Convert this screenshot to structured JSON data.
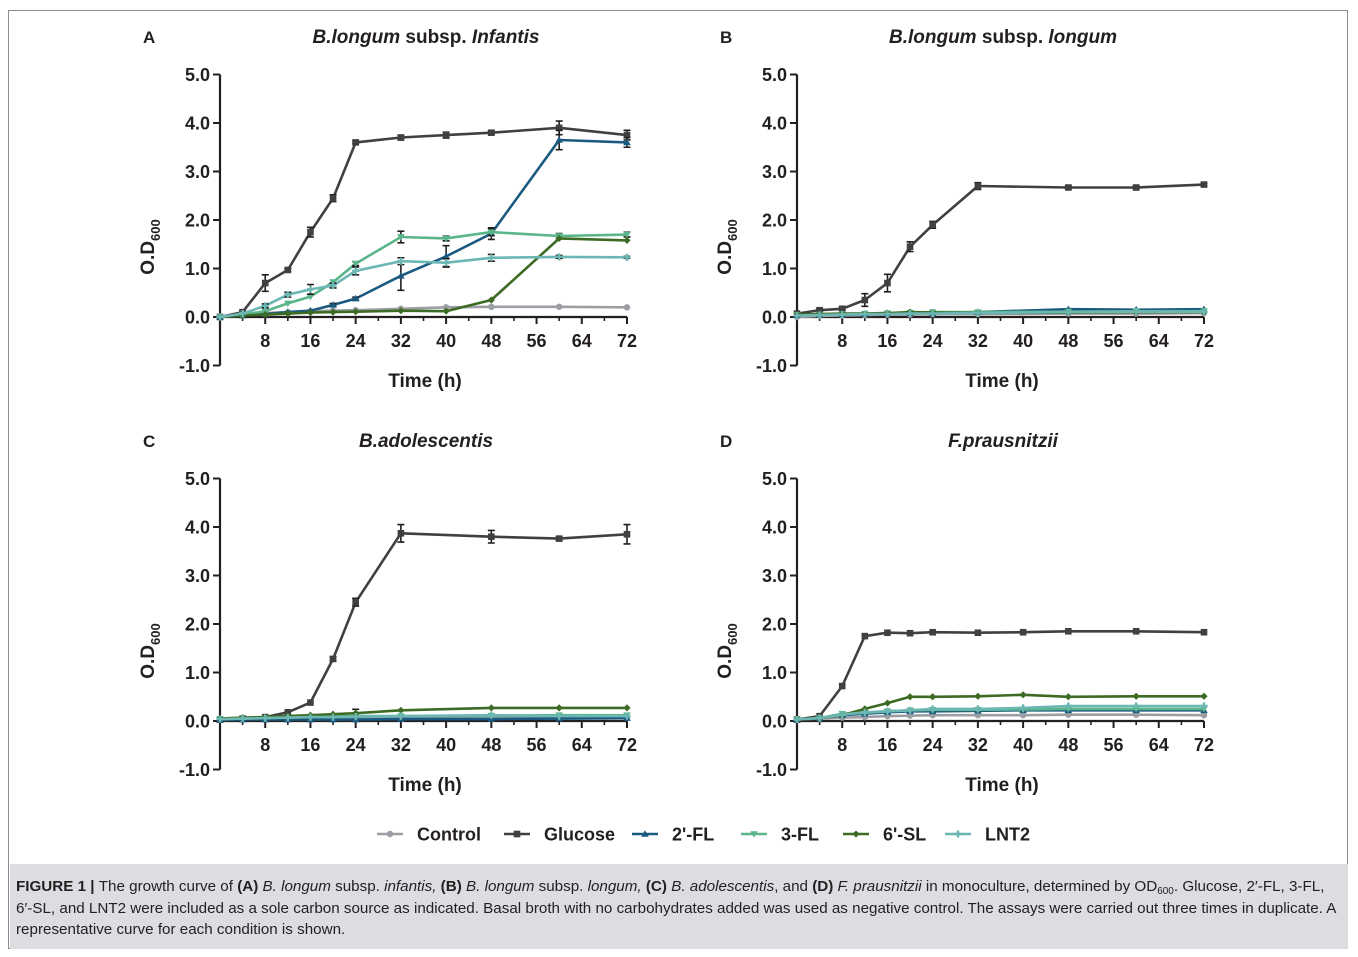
{
  "figure": {
    "colors": {
      "Control": "#9b9ea3",
      "Glucose": "#404040",
      "2'-FL": "#1a5a80",
      "3-FL": "#5bb58a",
      "6'-SL": "#3d6b24",
      "LNT2": "#6cb7b3"
    },
    "legend": [
      "Control",
      "Glucose",
      "2'-FL",
      "3-FL",
      "6'-SL",
      "LNT2"
    ]
  },
  "chart_data": [
    {
      "type": "line",
      "panel_letter": "A",
      "title_parts": [
        {
          "text": "B.longum",
          "italic": true
        },
        {
          "text": " subsp. ",
          "italic": false
        },
        {
          "text": "Infantis",
          "italic": true
        }
      ],
      "xlabel": "Time (h)",
      "ylabel": "O.D",
      "ylabel_sub": "600",
      "xlim": [
        0,
        72
      ],
      "ylim": [
        -1.0,
        5.0
      ],
      "xticks": [
        "8",
        "16",
        "24",
        "32",
        "40",
        "48",
        "56",
        "64",
        "72"
      ],
      "yticks": [
        "5.0",
        "4.0",
        "3.0",
        "2.0",
        "1.0",
        "0.0",
        "-1.0"
      ],
      "series": [
        {
          "name": "Control",
          "x": [
            0,
            4,
            8,
            12,
            16,
            20,
            24,
            32,
            40,
            48,
            60,
            72
          ],
          "y": [
            0,
            0.03,
            0.08,
            0.1,
            0.12,
            0.13,
            0.14,
            0.17,
            0.2,
            0.21,
            0.21,
            0.2
          ]
        },
        {
          "name": "Glucose",
          "x": [
            0,
            4,
            8,
            12,
            16,
            20,
            24,
            32,
            40,
            48,
            60,
            72
          ],
          "y": [
            0,
            0.1,
            0.7,
            0.97,
            1.75,
            2.45,
            3.6,
            3.7,
            3.75,
            3.8,
            3.9,
            3.75
          ],
          "err": [
            0,
            0.03,
            0.17,
            0.03,
            0.1,
            0.07,
            0.03,
            0.05,
            0.06,
            0.04,
            0.14,
            0.1
          ]
        },
        {
          "name": "2'-FL",
          "x": [
            0,
            4,
            8,
            12,
            16,
            20,
            24,
            32,
            40,
            48,
            60,
            72
          ],
          "y": [
            0,
            0.03,
            0.06,
            0.1,
            0.13,
            0.25,
            0.38,
            0.85,
            1.25,
            1.72,
            3.65,
            3.6
          ],
          "err": [
            0,
            0,
            0,
            0,
            0,
            0.03,
            0.03,
            0.3,
            0.22,
            0.12,
            0.2,
            0.1
          ]
        },
        {
          "name": "3-FL",
          "x": [
            0,
            4,
            8,
            12,
            16,
            20,
            24,
            32,
            40,
            48,
            60,
            72
          ],
          "y": [
            0,
            0.05,
            0.12,
            0.28,
            0.42,
            0.72,
            1.1,
            1.65,
            1.62,
            1.75,
            1.67,
            1.7
          ],
          "err": [
            0,
            0,
            0,
            0,
            0,
            0,
            0.04,
            0.12,
            0.05,
            0.07,
            0.05,
            0.05
          ]
        },
        {
          "name": "6'-SL",
          "x": [
            0,
            4,
            8,
            12,
            16,
            20,
            24,
            32,
            40,
            48,
            60,
            72
          ],
          "y": [
            0,
            0.03,
            0.05,
            0.07,
            0.09,
            0.1,
            0.11,
            0.13,
            0.12,
            0.35,
            1.62,
            1.58
          ]
        },
        {
          "name": "LNT2",
          "x": [
            0,
            4,
            8,
            12,
            16,
            20,
            24,
            32,
            40,
            48,
            60,
            72
          ],
          "y": [
            0,
            0.07,
            0.23,
            0.46,
            0.57,
            0.65,
            0.95,
            1.15,
            1.12,
            1.22,
            1.24,
            1.23
          ],
          "err": [
            0,
            0,
            0.04,
            0.05,
            0.1,
            0.05,
            0.08,
            0.07,
            0.08,
            0.07,
            0.03,
            0.02
          ]
        }
      ]
    },
    {
      "type": "line",
      "panel_letter": "B",
      "title_parts": [
        {
          "text": "B.longum",
          "italic": true
        },
        {
          "text": " subsp. ",
          "italic": false
        },
        {
          "text": "longum",
          "italic": true
        }
      ],
      "xlabel": "Time (h)",
      "ylabel": "O.D",
      "ylabel_sub": "600",
      "xlim": [
        0,
        72
      ],
      "ylim": [
        -1.0,
        5.0
      ],
      "xticks": [
        "8",
        "16",
        "24",
        "32",
        "40",
        "48",
        "56",
        "64",
        "72"
      ],
      "yticks": [
        "5.0",
        "4.0",
        "3.0",
        "2.0",
        "1.0",
        "0.0",
        "-1.0"
      ],
      "series": [
        {
          "name": "Control",
          "x": [
            0,
            4,
            8,
            12,
            16,
            20,
            24,
            32,
            48,
            60,
            72
          ],
          "y": [
            0,
            0.02,
            0.03,
            0.04,
            0.05,
            0.05,
            0.06,
            0.06,
            0.07,
            0.07,
            0.08
          ]
        },
        {
          "name": "Glucose",
          "x": [
            0,
            4,
            8,
            12,
            16,
            20,
            24,
            32,
            48,
            60,
            72
          ],
          "y": [
            0.07,
            0.14,
            0.17,
            0.35,
            0.7,
            1.45,
            1.9,
            2.7,
            2.67,
            2.67,
            2.73
          ],
          "err": [
            0,
            0.03,
            0.03,
            0.13,
            0.18,
            0.1,
            0.07,
            0.07,
            0.03,
            0.03,
            0.03
          ]
        },
        {
          "name": "2'-FL",
          "x": [
            0,
            4,
            8,
            12,
            16,
            20,
            24,
            32,
            48,
            60,
            72
          ],
          "y": [
            0.04,
            0.05,
            0.05,
            0.06,
            0.07,
            0.08,
            0.08,
            0.1,
            0.16,
            0.15,
            0.16
          ]
        },
        {
          "name": "3-FL",
          "x": [
            0,
            4,
            8,
            12,
            16,
            20,
            24,
            32,
            48,
            60,
            72
          ],
          "y": [
            0.04,
            0.05,
            0.06,
            0.07,
            0.08,
            0.09,
            0.1,
            0.1,
            0.11,
            0.12,
            0.12
          ]
        },
        {
          "name": "6'-SL",
          "x": [
            0,
            4,
            8,
            12,
            16,
            20,
            24,
            32,
            48,
            60,
            72
          ],
          "y": [
            0.05,
            0.06,
            0.07,
            0.07,
            0.08,
            0.1,
            0.09,
            0.08,
            0.09,
            0.1,
            0.1
          ]
        },
        {
          "name": "LNT2",
          "x": [
            0,
            4,
            8,
            12,
            16,
            20,
            24,
            32,
            48,
            60,
            72
          ],
          "y": [
            0.03,
            0.04,
            0.05,
            0.06,
            0.06,
            0.07,
            0.07,
            0.08,
            0.1,
            0.11,
            0.11
          ]
        }
      ]
    },
    {
      "type": "line",
      "panel_letter": "C",
      "title_parts": [
        {
          "text": "B.adolescentis",
          "italic": true
        }
      ],
      "xlabel": "Time (h)",
      "ylabel": "O.D",
      "ylabel_sub": "600",
      "xlim": [
        0,
        72
      ],
      "ylim": [
        -1.0,
        5.0
      ],
      "xticks": [
        "8",
        "16",
        "24",
        "32",
        "40",
        "48",
        "56",
        "64",
        "72"
      ],
      "yticks": [
        "5.0",
        "4.0",
        "3.0",
        "2.0",
        "1.0",
        "0.0",
        "-1.0"
      ],
      "series": [
        {
          "name": "Control",
          "x": [
            0,
            4,
            8,
            12,
            16,
            20,
            24,
            32,
            48,
            60,
            72
          ],
          "y": [
            0.03,
            0.04,
            0.04,
            0.05,
            0.05,
            0.06,
            0.06,
            0.06,
            0.07,
            0.07,
            0.07
          ]
        },
        {
          "name": "Glucose",
          "x": [
            0,
            4,
            8,
            12,
            16,
            20,
            24,
            32,
            48,
            60,
            72
          ],
          "y": [
            0.03,
            0.05,
            0.08,
            0.18,
            0.38,
            1.28,
            2.45,
            3.87,
            3.8,
            3.76,
            3.85
          ],
          "err": [
            0,
            0,
            0,
            0,
            0,
            0.04,
            0.08,
            0.18,
            0.13,
            0.04,
            0.2
          ]
        },
        {
          "name": "2'-FL",
          "x": [
            0,
            4,
            8,
            12,
            16,
            20,
            24,
            32,
            48,
            60,
            72
          ],
          "y": [
            0.02,
            0.03,
            0.03,
            0.03,
            0.03,
            0.03,
            0.03,
            0.04,
            0.04,
            0.05,
            0.06
          ]
        },
        {
          "name": "3-FL",
          "x": [
            0,
            4,
            8,
            12,
            16,
            20,
            24,
            32,
            48,
            60,
            72
          ],
          "y": [
            0.04,
            0.05,
            0.06,
            0.07,
            0.08,
            0.09,
            0.1,
            0.1,
            0.11,
            0.12,
            0.12
          ]
        },
        {
          "name": "6'-SL",
          "x": [
            0,
            4,
            8,
            12,
            16,
            20,
            24,
            32,
            48,
            60,
            72
          ],
          "y": [
            0.05,
            0.07,
            0.08,
            0.1,
            0.12,
            0.14,
            0.16,
            0.22,
            0.27,
            0.27,
            0.27
          ],
          "err": [
            0,
            0,
            0,
            0,
            0,
            0,
            0.08,
            0,
            0,
            0,
            0
          ]
        },
        {
          "name": "LNT2",
          "x": [
            0,
            4,
            8,
            12,
            16,
            20,
            24,
            32,
            48,
            60,
            72
          ],
          "y": [
            0.04,
            0.05,
            0.06,
            0.07,
            0.08,
            0.08,
            0.09,
            0.1,
            0.12,
            0.1,
            0.1
          ]
        }
      ]
    },
    {
      "type": "line",
      "panel_letter": "D",
      "title_parts": [
        {
          "text": "F.prausnitzii",
          "italic": true
        }
      ],
      "xlabel": "Time (h)",
      "ylabel": "O.D",
      "ylabel_sub": "600",
      "xlim": [
        0,
        72
      ],
      "ylim": [
        -1.0,
        5.0
      ],
      "xticks": [
        "8",
        "16",
        "24",
        "32",
        "40",
        "48",
        "56",
        "64",
        "72"
      ],
      "yticks": [
        "5.0",
        "4.0",
        "3.0",
        "2.0",
        "1.0",
        "0.0",
        "-1.0"
      ],
      "series": [
        {
          "name": "Control",
          "x": [
            0,
            4,
            8,
            12,
            16,
            20,
            24,
            32,
            40,
            48,
            60,
            72
          ],
          "y": [
            0.03,
            0.05,
            0.07,
            0.08,
            0.1,
            0.11,
            0.12,
            0.12,
            0.12,
            0.13,
            0.13,
            0.12
          ]
        },
        {
          "name": "Glucose",
          "x": [
            0,
            4,
            8,
            12,
            16,
            20,
            24,
            32,
            40,
            48,
            60,
            72
          ],
          "y": [
            0.03,
            0.1,
            0.72,
            1.75,
            1.82,
            1.81,
            1.83,
            1.82,
            1.83,
            1.85,
            1.85,
            1.83
          ]
        },
        {
          "name": "2'-FL",
          "x": [
            0,
            4,
            8,
            12,
            16,
            20,
            24,
            32,
            40,
            48,
            60,
            72
          ],
          "y": [
            0.03,
            0.06,
            0.12,
            0.15,
            0.18,
            0.2,
            0.2,
            0.21,
            0.22,
            0.22,
            0.22,
            0.22
          ]
        },
        {
          "name": "3-FL",
          "x": [
            0,
            4,
            8,
            12,
            16,
            20,
            24,
            32,
            40,
            48,
            60,
            72
          ],
          "y": [
            0.03,
            0.06,
            0.15,
            0.17,
            0.2,
            0.22,
            0.23,
            0.23,
            0.24,
            0.25,
            0.25,
            0.25
          ]
        },
        {
          "name": "6'-SL",
          "x": [
            0,
            4,
            8,
            12,
            16,
            20,
            24,
            32,
            40,
            48,
            60,
            72
          ],
          "y": [
            0.03,
            0.06,
            0.12,
            0.25,
            0.37,
            0.5,
            0.5,
            0.51,
            0.54,
            0.5,
            0.51,
            0.51
          ]
        },
        {
          "name": "LNT2",
          "x": [
            0,
            4,
            8,
            12,
            16,
            20,
            24,
            32,
            40,
            48,
            60,
            72
          ],
          "y": [
            0.03,
            0.06,
            0.13,
            0.18,
            0.2,
            0.22,
            0.25,
            0.25,
            0.27,
            0.31,
            0.31,
            0.31
          ]
        }
      ]
    }
  ],
  "caption": [
    {
      "t": "FIGURE 1 | ",
      "s": "b"
    },
    {
      "t": "The growth curve of ",
      "s": ""
    },
    {
      "t": "(A)",
      "s": "b"
    },
    {
      "t": " ",
      "s": ""
    },
    {
      "t": "B. longum",
      "s": "i"
    },
    {
      "t": " subsp. ",
      "s": ""
    },
    {
      "t": "infantis,",
      "s": "i"
    },
    {
      "t": " ",
      "s": ""
    },
    {
      "t": "(B)",
      "s": "b"
    },
    {
      "t": " ",
      "s": ""
    },
    {
      "t": "B. longum",
      "s": "i"
    },
    {
      "t": " subsp. ",
      "s": ""
    },
    {
      "t": "longum,",
      "s": "i"
    },
    {
      "t": " ",
      "s": ""
    },
    {
      "t": "(C)",
      "s": "b"
    },
    {
      "t": " ",
      "s": ""
    },
    {
      "t": "B. adolescentis",
      "s": "i"
    },
    {
      "t": ", and ",
      "s": ""
    },
    {
      "t": "(D)",
      "s": "b"
    },
    {
      "t": " ",
      "s": ""
    },
    {
      "t": "F. prausnitzii",
      "s": "i"
    },
    {
      "t": " in monoculture, determined by OD",
      "s": ""
    },
    {
      "t": "600",
      "s": "sub"
    },
    {
      "t": ". Glucose, 2′-FL, 3-FL, 6′-SL, and LNT2 were included as a sole carbon source as indicated. Basal broth with no carbohydrates added was used as negative control. The assays were carried out three times in duplicate. A representative curve for each condition is shown.",
      "s": ""
    }
  ]
}
